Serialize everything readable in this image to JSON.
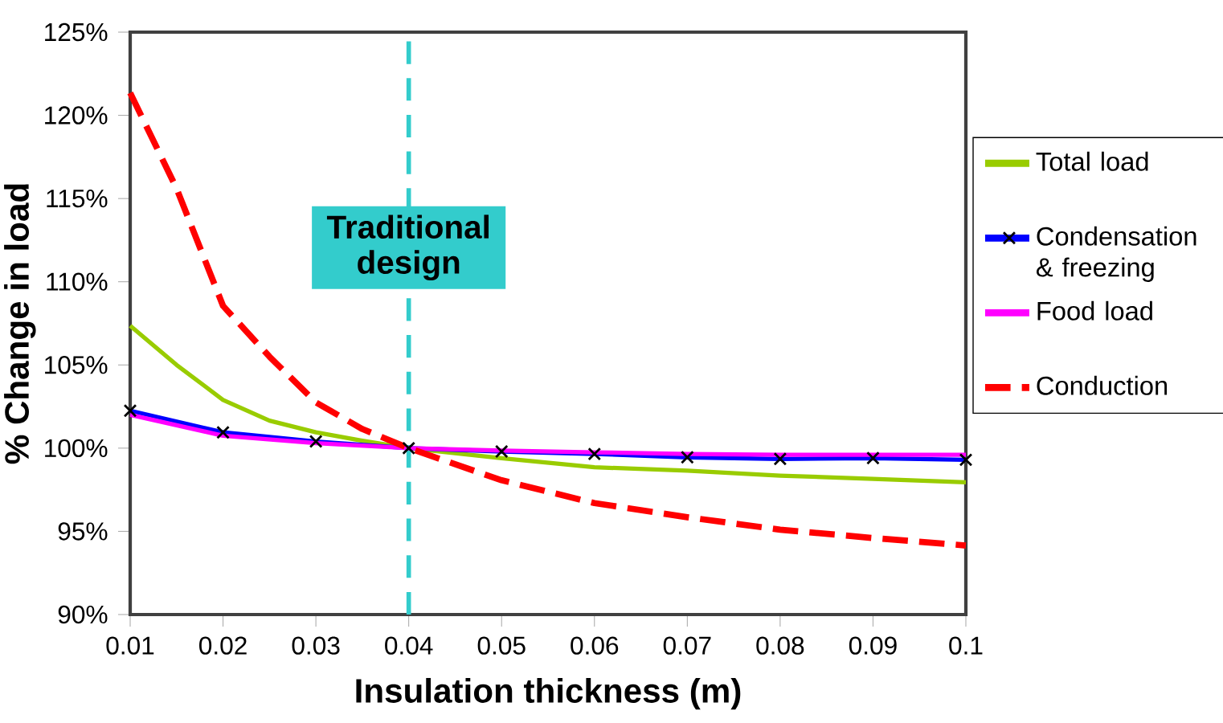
{
  "chart_data": {
    "type": "line",
    "xlabel": "Insulation thickness (m)",
    "ylabel": "% Change in load",
    "xlim": [
      0.01,
      0.1
    ],
    "xticks": [
      0.01,
      0.02,
      0.03,
      0.04,
      0.05,
      0.06,
      0.07,
      0.08,
      0.09,
      0.1
    ],
    "ylim": [
      90,
      125
    ],
    "yticks": [
      {
        "value": 90,
        "label": "90%"
      },
      {
        "value": 95,
        "label": "95%"
      },
      {
        "value": 100,
        "label": "100%"
      },
      {
        "value": 105,
        "label": "105%"
      },
      {
        "value": 110,
        "label": "110%"
      },
      {
        "value": 115,
        "label": "115%"
      },
      {
        "value": 120,
        "label": "120%"
      },
      {
        "value": 125,
        "label": "125%"
      }
    ],
    "grid": false,
    "legend": "right",
    "ref_lines": [
      {
        "axis": "x",
        "value": 0.04,
        "label": "Traditional design",
        "color": "#33cccc",
        "line_style": "dashed"
      }
    ],
    "series": [
      {
        "name": "Total load",
        "color": "#99cc00",
        "x": [
          0.01,
          0.015,
          0.02,
          0.025,
          0.03,
          0.035,
          0.04,
          0.05,
          0.06,
          0.07,
          0.08,
          0.09,
          0.1
        ],
        "values": [
          107.35,
          105.0,
          102.9,
          101.65,
          100.95,
          100.45,
          100,
          99.4,
          98.85,
          98.65,
          98.35,
          98.15,
          97.95
        ]
      },
      {
        "name": "Condensation & freezing",
        "color": "#0000ff",
        "marker": "cross",
        "x": [
          0.01,
          0.02,
          0.03,
          0.04,
          0.05,
          0.06,
          0.07,
          0.08,
          0.09,
          0.1
        ],
        "values": [
          102.25,
          100.95,
          100.4,
          100,
          99.8,
          99.65,
          99.45,
          99.35,
          99.4,
          99.3
        ]
      },
      {
        "name": "Food load",
        "color": "#ff00ff",
        "x": [
          0.01,
          0.02,
          0.03,
          0.04,
          0.05,
          0.06,
          0.07,
          0.08,
          0.09,
          0.1
        ],
        "values": [
          102.0,
          100.75,
          100.3,
          100,
          99.85,
          99.75,
          99.65,
          99.6,
          99.6,
          99.6
        ]
      },
      {
        "name": "Conduction",
        "color": "#ff0000",
        "line_style": "dashed",
        "x": [
          0.01,
          0.015,
          0.02,
          0.025,
          0.03,
          0.035,
          0.04,
          0.05,
          0.06,
          0.07,
          0.08,
          0.09,
          0.1
        ],
        "values": [
          121.35,
          115.6,
          108.55,
          105.5,
          102.75,
          101.15,
          100,
          98.07,
          96.7,
          95.85,
          95.1,
          94.6,
          94.15
        ]
      }
    ]
  }
}
